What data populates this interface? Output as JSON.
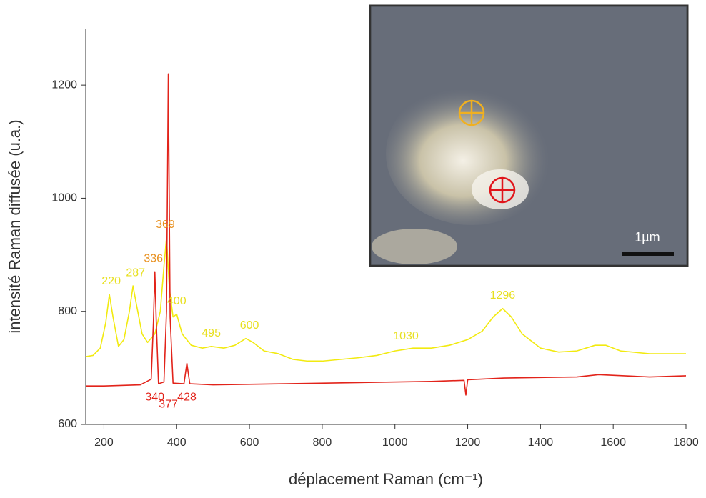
{
  "chart_data": {
    "type": "line",
    "x_label": "déplacement Raman (cm⁻¹)",
    "y_label": "intensité Raman diffusée (u.a.)",
    "xlim": [
      150,
      1800
    ],
    "ylim": [
      600,
      1300
    ],
    "xticks": [
      200,
      400,
      600,
      800,
      1000,
      1200,
      1400,
      1600,
      1800
    ],
    "yticks": [
      600,
      800,
      1000,
      1200
    ],
    "series": [
      {
        "color": "#f2ea10",
        "x": [
          150,
          170,
          190,
          205,
          215,
          225,
          240,
          255,
          270,
          280,
          290,
          305,
          320,
          340,
          355,
          365,
          372,
          380,
          390,
          400,
          415,
          440,
          470,
          495,
          530,
          560,
          590,
          610,
          640,
          680,
          720,
          760,
          800,
          850,
          900,
          950,
          1000,
          1050,
          1100,
          1150,
          1200,
          1240,
          1270,
          1296,
          1320,
          1350,
          1400,
          1450,
          1500,
          1550,
          1580,
          1620,
          1700,
          1800
        ],
        "values": [
          720,
          722,
          735,
          780,
          830,
          790,
          738,
          750,
          800,
          845,
          810,
          760,
          745,
          760,
          800,
          880,
          930,
          840,
          790,
          795,
          760,
          740,
          735,
          738,
          735,
          740,
          752,
          745,
          730,
          725,
          715,
          712,
          712,
          715,
          718,
          722,
          730,
          735,
          735,
          740,
          750,
          765,
          790,
          805,
          790,
          760,
          735,
          728,
          730,
          740,
          740,
          730,
          725,
          725
        ]
      },
      {
        "color": "#e2231a",
        "x": [
          150,
          200,
          300,
          330,
          336,
          340,
          344,
          350,
          365,
          372,
          377,
          382,
          390,
          420,
          428,
          436,
          500,
          700,
          900,
          1100,
          1190,
          1195,
          1200,
          1300,
          1500,
          1560,
          1700,
          1800
        ],
        "values": [
          668,
          668,
          670,
          680,
          780,
          870,
          780,
          672,
          675,
          800,
          1220,
          790,
          673,
          672,
          708,
          672,
          670,
          672,
          674,
          676,
          678,
          652,
          679,
          682,
          684,
          688,
          684,
          686
        ]
      }
    ],
    "annotations": [
      {
        "x": 220,
        "y": 830,
        "color": "#e8e020",
        "position": "above"
      },
      {
        "x": 287,
        "y": 845,
        "color": "#e8e020",
        "position": "above"
      },
      {
        "x": 336,
        "y": 870,
        "color": "#e8901e",
        "position": "above"
      },
      {
        "x": 369,
        "y": 930,
        "color": "#e8901e",
        "position": "above"
      },
      {
        "x": 400,
        "y": 795,
        "color": "#e8e020",
        "position": "above"
      },
      {
        "x": 495,
        "y": 738,
        "color": "#e8e020",
        "position": "above"
      },
      {
        "x": 600,
        "y": 752,
        "color": "#e8e020",
        "position": "above"
      },
      {
        "x": 1030,
        "y": 733,
        "color": "#e8e020",
        "position": "above"
      },
      {
        "x": 1296,
        "y": 805,
        "color": "#e8e020",
        "position": "above"
      },
      {
        "x": 340,
        "y": 668,
        "color": "#e2231a",
        "position": "below"
      },
      {
        "x": 377,
        "y": 655,
        "color": "#e2231a",
        "position": "below"
      },
      {
        "x": 428,
        "y": 668,
        "color": "#e2231a",
        "position": "below"
      }
    ],
    "inset": {
      "scale_label": "1µm"
    }
  }
}
